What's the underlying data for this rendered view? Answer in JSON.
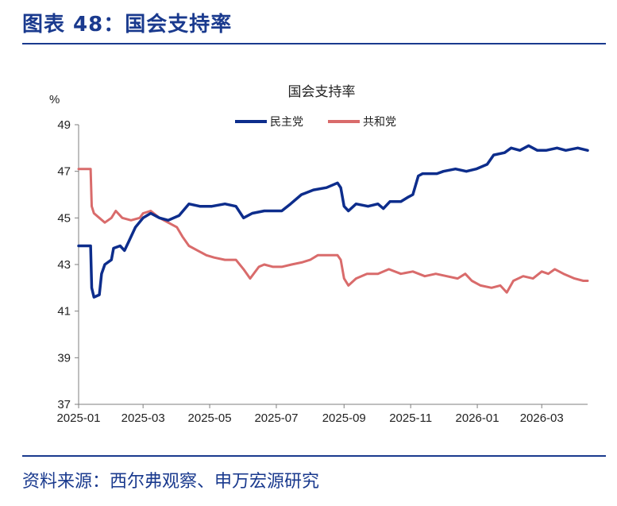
{
  "figure_title": "图表 48：国会支持率",
  "source": "资料来源：西尔弗观察、申万宏源研究",
  "chart_data": {
    "type": "line",
    "title": "国会支持率",
    "ylabel": "%",
    "ylim": [
      37,
      49
    ],
    "yticks": [
      "49",
      "47",
      "45",
      "43",
      "41",
      "39",
      "37"
    ],
    "xtick_labels": [
      "2025-01",
      "2025-03",
      "2025-05",
      "2025-07",
      "2025-09",
      "2025-11",
      "2026-01",
      "2026-03"
    ],
    "legend_position": "top-center",
    "grid": false,
    "series": [
      {
        "name": "民主党",
        "color": "#0d2d8c",
        "points": [
          [
            "2025-01-01",
            43.8
          ],
          [
            "2025-01-12",
            43.8
          ],
          [
            "2025-01-13",
            42.0
          ],
          [
            "2025-01-15",
            41.6
          ],
          [
            "2025-01-20",
            41.7
          ],
          [
            "2025-01-22",
            42.6
          ],
          [
            "2025-01-25",
            43.0
          ],
          [
            "2025-01-31",
            43.2
          ],
          [
            "2025-02-02",
            43.7
          ],
          [
            "2025-02-08",
            43.8
          ],
          [
            "2025-02-12",
            43.6
          ],
          [
            "2025-02-16",
            44.0
          ],
          [
            "2025-02-22",
            44.6
          ],
          [
            "2025-03-01",
            45.0
          ],
          [
            "2025-03-08",
            45.2
          ],
          [
            "2025-03-16",
            45.0
          ],
          [
            "2025-03-24",
            44.9
          ],
          [
            "2025-04-03",
            45.1
          ],
          [
            "2025-04-12",
            45.6
          ],
          [
            "2025-04-22",
            45.5
          ],
          [
            "2025-05-03",
            45.5
          ],
          [
            "2025-05-15",
            45.6
          ],
          [
            "2025-05-25",
            45.5
          ],
          [
            "2025-06-01",
            45.0
          ],
          [
            "2025-06-09",
            45.2
          ],
          [
            "2025-06-20",
            45.3
          ],
          [
            "2025-07-06",
            45.3
          ],
          [
            "2025-07-14",
            45.6
          ],
          [
            "2025-07-24",
            46.0
          ],
          [
            "2025-08-04",
            46.2
          ],
          [
            "2025-08-16",
            46.3
          ],
          [
            "2025-08-26",
            46.5
          ],
          [
            "2025-08-29",
            46.3
          ],
          [
            "2025-09-01",
            45.5
          ],
          [
            "2025-09-05",
            45.3
          ],
          [
            "2025-09-12",
            45.6
          ],
          [
            "2025-09-23",
            45.5
          ],
          [
            "2025-10-02",
            45.6
          ],
          [
            "2025-10-07",
            45.4
          ],
          [
            "2025-10-13",
            45.7
          ],
          [
            "2025-10-23",
            45.7
          ],
          [
            "2025-10-30",
            45.9
          ],
          [
            "2025-11-03",
            46.0
          ],
          [
            "2025-11-08",
            46.8
          ],
          [
            "2025-11-12",
            46.9
          ],
          [
            "2025-11-25",
            46.9
          ],
          [
            "2025-12-01",
            47.0
          ],
          [
            "2025-12-12",
            47.1
          ],
          [
            "2025-12-22",
            47.0
          ],
          [
            "2025-12-31",
            47.1
          ],
          [
            "2026-01-10",
            47.3
          ],
          [
            "2026-01-16",
            47.7
          ],
          [
            "2026-01-26",
            47.8
          ],
          [
            "2026-02-01",
            48.0
          ],
          [
            "2026-02-09",
            47.9
          ],
          [
            "2026-02-17",
            48.1
          ],
          [
            "2026-02-25",
            47.9
          ],
          [
            "2026-03-05",
            47.9
          ],
          [
            "2026-03-15",
            48.0
          ],
          [
            "2026-03-23",
            47.9
          ],
          [
            "2026-04-03",
            48.0
          ],
          [
            "2026-04-12",
            47.9
          ]
        ]
      },
      {
        "name": "共和党",
        "color": "#d96b6b",
        "points": [
          [
            "2025-01-01",
            47.1
          ],
          [
            "2025-01-12",
            47.1
          ],
          [
            "2025-01-13",
            45.5
          ],
          [
            "2025-01-15",
            45.2
          ],
          [
            "2025-01-20",
            45.0
          ],
          [
            "2025-01-25",
            44.8
          ],
          [
            "2025-01-31",
            45.0
          ],
          [
            "2025-02-04",
            45.3
          ],
          [
            "2025-02-10",
            45.0
          ],
          [
            "2025-02-18",
            44.9
          ],
          [
            "2025-02-26",
            45.0
          ],
          [
            "2025-03-01",
            45.2
          ],
          [
            "2025-03-08",
            45.3
          ],
          [
            "2025-03-16",
            45.0
          ],
          [
            "2025-03-24",
            44.8
          ],
          [
            "2025-04-01",
            44.6
          ],
          [
            "2025-04-06",
            44.2
          ],
          [
            "2025-04-12",
            43.8
          ],
          [
            "2025-04-20",
            43.6
          ],
          [
            "2025-04-28",
            43.4
          ],
          [
            "2025-05-05",
            43.3
          ],
          [
            "2025-05-15",
            43.2
          ],
          [
            "2025-05-25",
            43.2
          ],
          [
            "2025-06-01",
            42.8
          ],
          [
            "2025-06-07",
            42.4
          ],
          [
            "2025-06-15",
            42.9
          ],
          [
            "2025-06-20",
            43.0
          ],
          [
            "2025-06-28",
            42.9
          ],
          [
            "2025-07-06",
            42.9
          ],
          [
            "2025-07-15",
            43.0
          ],
          [
            "2025-07-25",
            43.1
          ],
          [
            "2025-08-01",
            43.2
          ],
          [
            "2025-08-08",
            43.4
          ],
          [
            "2025-08-16",
            43.4
          ],
          [
            "2025-08-26",
            43.4
          ],
          [
            "2025-08-29",
            43.2
          ],
          [
            "2025-09-01",
            42.4
          ],
          [
            "2025-09-05",
            42.1
          ],
          [
            "2025-09-12",
            42.4
          ],
          [
            "2025-09-22",
            42.6
          ],
          [
            "2025-10-02",
            42.6
          ],
          [
            "2025-10-12",
            42.8
          ],
          [
            "2025-10-23",
            42.6
          ],
          [
            "2025-11-03",
            42.7
          ],
          [
            "2025-11-14",
            42.5
          ],
          [
            "2025-11-24",
            42.6
          ],
          [
            "2025-12-04",
            42.5
          ],
          [
            "2025-12-14",
            42.4
          ],
          [
            "2025-12-21",
            42.6
          ],
          [
            "2025-12-27",
            42.3
          ],
          [
            "2026-01-04",
            42.1
          ],
          [
            "2026-01-14",
            42.0
          ],
          [
            "2026-01-22",
            42.1
          ],
          [
            "2026-01-28",
            41.8
          ],
          [
            "2026-02-03",
            42.3
          ],
          [
            "2026-02-12",
            42.5
          ],
          [
            "2026-02-21",
            42.4
          ],
          [
            "2026-03-01",
            42.7
          ],
          [
            "2026-03-07",
            42.6
          ],
          [
            "2026-03-13",
            42.8
          ],
          [
            "2026-03-21",
            42.6
          ],
          [
            "2026-03-31",
            42.4
          ],
          [
            "2026-04-08",
            42.3
          ],
          [
            "2026-04-12",
            42.3
          ]
        ]
      }
    ]
  }
}
